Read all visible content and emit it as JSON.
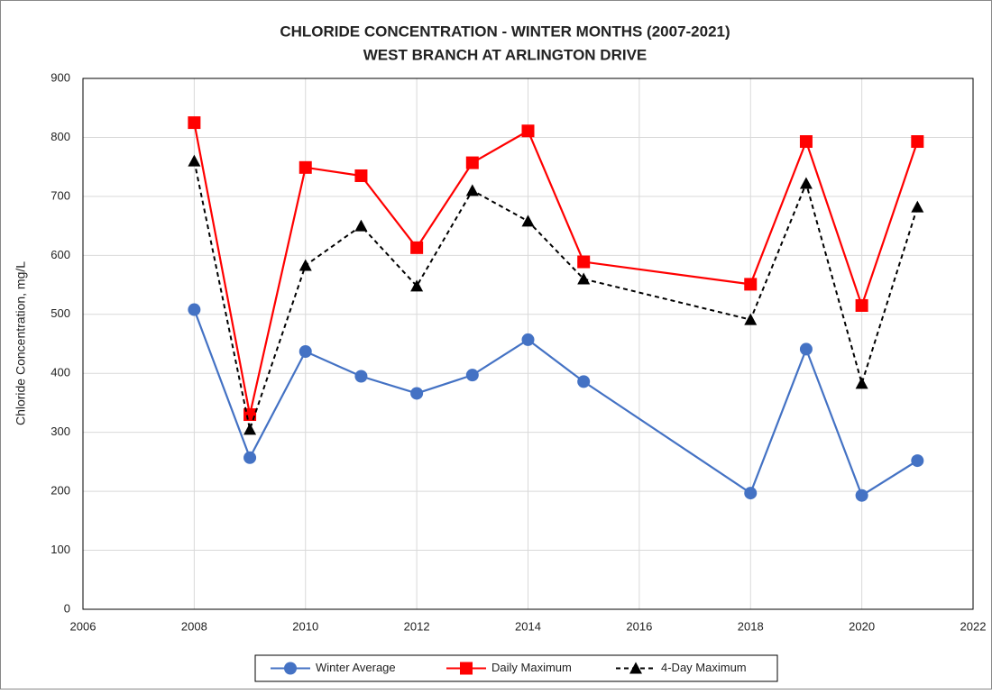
{
  "chart_data": {
    "type": "line",
    "title": [
      "CHLORIDE CONCENTRATION - WINTER MONTHS (2007-2021)",
      "WEST BRANCH AT ARLINGTON DRIVE"
    ],
    "y_label": "Chloride Concentration, mg/L",
    "x": [
      2008,
      2009,
      2010,
      2011,
      2012,
      2013,
      2014,
      2015,
      2018,
      2019,
      2020,
      2021
    ],
    "series": [
      {
        "name": "Winter Average",
        "color": "#4472c4",
        "marker": "circle",
        "dashed": false,
        "values": [
          508,
          257,
          437,
          395,
          366,
          397,
          457,
          386,
          197,
          441,
          193,
          252
        ]
      },
      {
        "name": "Daily Maximum",
        "color": "#ff0000",
        "marker": "square",
        "dashed": false,
        "values": [
          825,
          330,
          749,
          735,
          613,
          757,
          811,
          589,
          551,
          793,
          515,
          793
        ]
      },
      {
        "name": "4-Day Maximum",
        "color": "#000000",
        "marker": "triangle",
        "dashed": true,
        "values": [
          760,
          305,
          583,
          650,
          548,
          710,
          658,
          560,
          491,
          722,
          383,
          682
        ]
      }
    ],
    "xlim": [
      2006,
      2022
    ],
    "xticks": [
      2006,
      2008,
      2010,
      2012,
      2014,
      2016,
      2018,
      2020,
      2022
    ],
    "ylim": [
      0,
      900
    ],
    "yticks": [
      0,
      100,
      200,
      300,
      400,
      500,
      600,
      700,
      800,
      900
    ],
    "grid": true,
    "legend": "bottom"
  }
}
